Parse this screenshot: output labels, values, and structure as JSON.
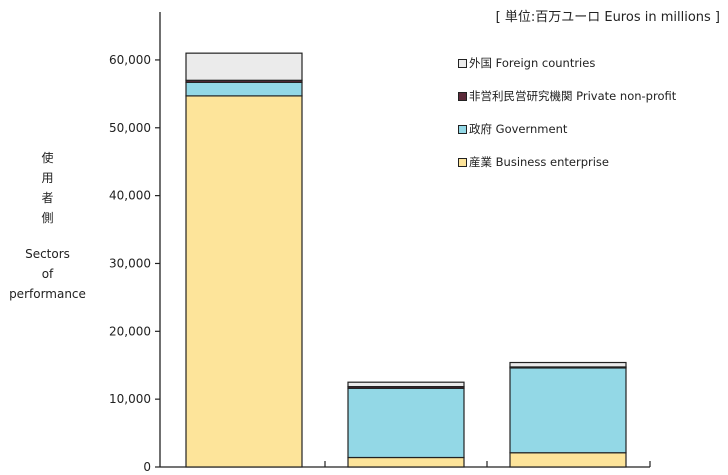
{
  "unit_label": "[ 単位:百万ユーロ  Euros in millions ]",
  "ylabel_jp": [
    "使",
    "用",
    "者",
    "側"
  ],
  "ylabel_en": [
    "Sectors",
    "of",
    "performance"
  ],
  "legend": [
    {
      "label": "外国  Foreign countries",
      "color": "#ebebeb"
    },
    {
      "label": "非営利民営研究機関  Private non-profit",
      "color": "#5c2a3a"
    },
    {
      "label": "政府  Government",
      "color": "#93d8e6"
    },
    {
      "label": "産業  Business enterprise",
      "color": "#fde49a"
    }
  ],
  "chart_data": {
    "type": "bar",
    "stacked": true,
    "categories": [
      "",
      "",
      ""
    ],
    "ylim": [
      0,
      65000
    ],
    "yticks": [
      {
        "value": 0,
        "label": "0"
      },
      {
        "value": 10000,
        "label": "10,000"
      },
      {
        "value": 20000,
        "label": "20,000"
      },
      {
        "value": 30000,
        "label": "30,000"
      },
      {
        "value": 40000,
        "label": "40,000"
      },
      {
        "value": 50000,
        "label": "50,000"
      },
      {
        "value": 60000,
        "label": "60,000"
      }
    ],
    "series": [
      {
        "name": "産業  Business enterprise",
        "color": "#fde49a",
        "values": [
          54700,
          1400,
          2100
        ]
      },
      {
        "name": "政府  Government",
        "color": "#93d8e6",
        "values": [
          2000,
          10200,
          12500
        ]
      },
      {
        "name": "非営利民営研究機関  Private non-profit",
        "color": "#5c2a3a",
        "values": [
          300,
          250,
          150
        ]
      },
      {
        "name": "外国  Foreign countries",
        "color": "#ebebeb",
        "values": [
          4000,
          650,
          650
        ]
      }
    ]
  }
}
